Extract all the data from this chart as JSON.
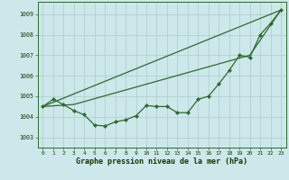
{
  "xlabel_label": "Graphe pression niveau de la mer (hPa)",
  "ylim": [
    1002.5,
    1009.6
  ],
  "xlim": [
    -0.5,
    23.5
  ],
  "yticks": [
    1003,
    1004,
    1005,
    1006,
    1007,
    1008,
    1009
  ],
  "xticks": [
    0,
    1,
    2,
    3,
    4,
    5,
    6,
    7,
    8,
    9,
    10,
    11,
    12,
    13,
    14,
    15,
    16,
    17,
    18,
    19,
    20,
    21,
    22,
    23
  ],
  "bg_color": "#cce8ea",
  "grid_color": "#aacccc",
  "line_color": "#2d6a2d",
  "line1": [
    1004.5,
    1004.85,
    1004.6,
    1004.3,
    1004.1,
    1003.6,
    1003.55,
    1003.75,
    1003.85,
    1004.05,
    1004.55,
    1004.5,
    1004.5,
    1004.2,
    1004.2,
    1004.85,
    1005.0,
    1005.6,
    1006.25,
    1007.0,
    1006.9,
    1008.0,
    1008.55,
    1009.2
  ],
  "line2_x": [
    0,
    23
  ],
  "line2_y": [
    1004.5,
    1009.2
  ],
  "line3_x": [
    0,
    3,
    20,
    23
  ],
  "line3_y": [
    1004.5,
    1004.6,
    1007.0,
    1009.2
  ]
}
